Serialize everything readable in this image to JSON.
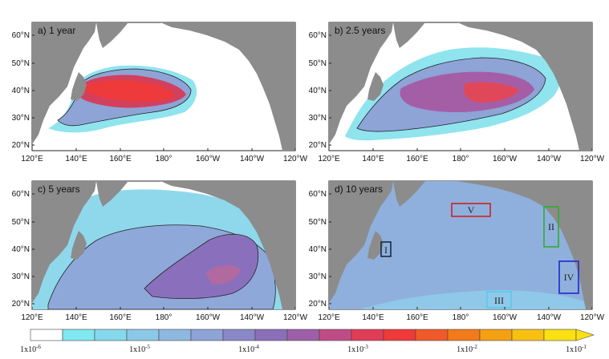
{
  "panels": [
    {
      "id": "a",
      "title": "a) 1 year"
    },
    {
      "id": "b",
      "title": "b) 2.5 years"
    },
    {
      "id": "c",
      "title": "c) 5 years"
    },
    {
      "id": "d",
      "title": "d) 10 years"
    }
  ],
  "lat_ticks": [
    "60°N",
    "50°N",
    "40°N",
    "30°N",
    "20°N"
  ],
  "lon_ticks": [
    "120°E",
    "140°E",
    "160°E",
    "180°",
    "160°W",
    "140°W",
    "120°W"
  ],
  "regions": [
    {
      "label": "I",
      "color": "#1a2a4a"
    },
    {
      "label": "II",
      "color": "#33aa33"
    },
    {
      "label": "III",
      "color": "#55ccee"
    },
    {
      "label": "IV",
      "color": "#1a2ad0"
    },
    {
      "label": "V",
      "color": "#cc2222"
    }
  ],
  "colorbar": {
    "ticks": [
      "1x10",
      "1x10",
      "1x10",
      "1x10",
      "1x10",
      "1x10"
    ],
    "exponents": [
      "-6",
      "-5",
      "-4",
      "-3",
      "-2",
      "-1"
    ],
    "colors": [
      "#ffffff",
      "#7fe8f0",
      "#86d8ec",
      "#8bc8e8",
      "#8fb8e0",
      "#8ea3d6",
      "#8a88c8",
      "#8a6fb8",
      "#9c5fa8",
      "#c04c86",
      "#e03c58",
      "#ee3a3a",
      "#f05a2a",
      "#f27a1a",
      "#f5a012",
      "#f8c010",
      "#fbe012"
    ]
  },
  "colors": {
    "land": "#8c8c8c",
    "ocean_blank": "#ffffff",
    "low": "#8fe4ee",
    "mid": "#8fa8da",
    "high": "#8a70bc",
    "peak": "#e63c48"
  }
}
